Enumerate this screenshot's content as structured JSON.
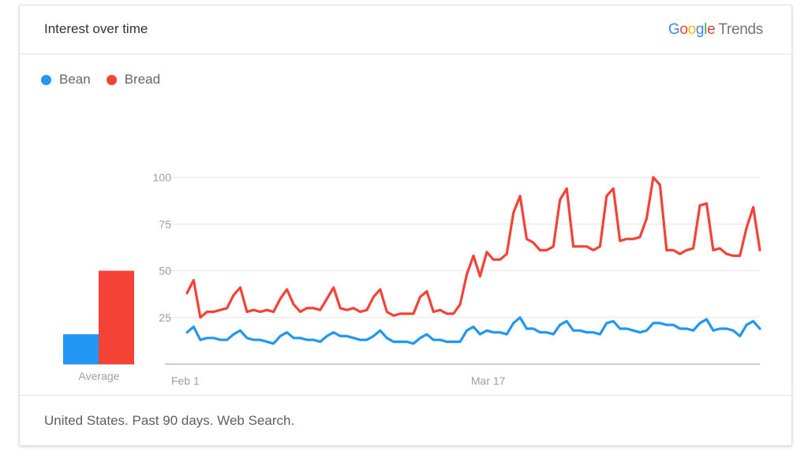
{
  "header": {
    "title": "Interest over time",
    "brand": {
      "g1": "G",
      "g2": "o",
      "g3": "o",
      "g4": "g",
      "g5": "l",
      "g6": "e",
      "trends": "Trends"
    }
  },
  "legend": [
    {
      "label": "Bean",
      "color": "#2196f3"
    },
    {
      "label": "Bread",
      "color": "#f44336"
    }
  ],
  "footer": {
    "text": "United States. Past 90 days. Web Search."
  },
  "chart_data": {
    "type": "line",
    "title": "Interest over time",
    "ylim": [
      0,
      100
    ],
    "yticks": [
      25,
      50,
      75,
      100
    ],
    "grid": true,
    "legend_placement": "top-left",
    "x_tick_labels": [
      {
        "label": "Feb 1",
        "index": 0
      },
      {
        "label": "Mar 17",
        "index": 45
      }
    ],
    "series": [
      {
        "name": "Bean",
        "color": "#2196f3",
        "values": [
          17,
          20,
          13,
          14,
          14,
          13,
          13,
          16,
          18,
          14,
          13,
          13,
          12,
          11,
          15,
          17,
          14,
          14,
          13,
          13,
          12,
          15,
          17,
          15,
          15,
          14,
          13,
          13,
          15,
          18,
          14,
          12,
          12,
          12,
          11,
          14,
          16,
          13,
          13,
          12,
          12,
          12,
          18,
          20,
          16,
          18,
          17,
          17,
          16,
          22,
          25,
          19,
          19,
          17,
          17,
          16,
          21,
          23,
          18,
          18,
          17,
          17,
          16,
          22,
          23,
          19,
          19,
          18,
          17,
          18,
          22,
          22,
          21,
          21,
          19,
          19,
          18,
          22,
          24,
          18,
          19,
          19,
          18,
          15,
          21,
          23,
          19
        ],
        "average": 16
      },
      {
        "name": "Bread",
        "color": "#f44336",
        "values": [
          38,
          45,
          25,
          28,
          28,
          29,
          30,
          37,
          41,
          28,
          29,
          28,
          29,
          28,
          35,
          40,
          32,
          28,
          30,
          30,
          29,
          35,
          41,
          30,
          29,
          30,
          28,
          29,
          36,
          40,
          28,
          26,
          27,
          27,
          27,
          36,
          39,
          28,
          29,
          27,
          27,
          32,
          48,
          58,
          47,
          60,
          56,
          56,
          59,
          81,
          90,
          67,
          65,
          61,
          61,
          63,
          88,
          94,
          63,
          63,
          63,
          61,
          63,
          90,
          94,
          66,
          67,
          67,
          68,
          78,
          100,
          96,
          61,
          61,
          59,
          61,
          62,
          85,
          86,
          61,
          62,
          59,
          58,
          58,
          73,
          84,
          61
        ],
        "average": 50
      }
    ],
    "average_label": "Average"
  }
}
